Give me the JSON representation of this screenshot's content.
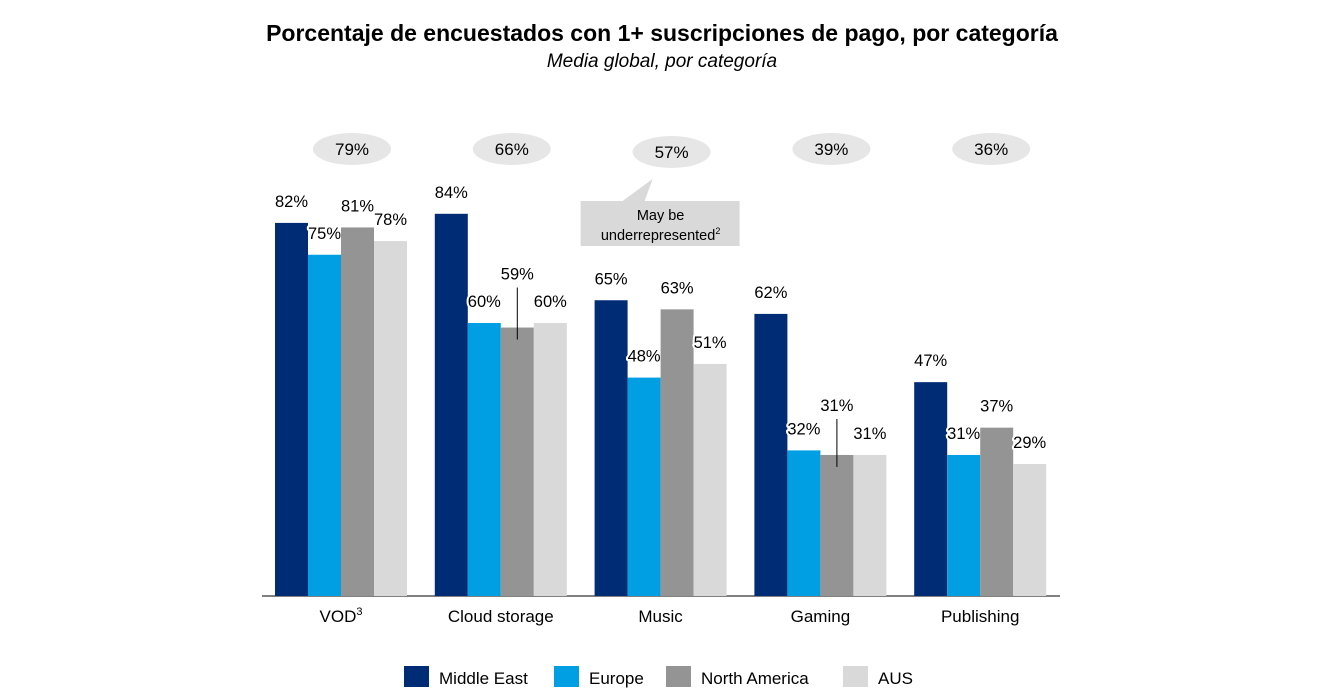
{
  "title": "Porcentaje de encuestados con 1+ suscripciones de pago, por categoría",
  "subtitle": "Media global, por categoría",
  "chart_data": {
    "type": "bar",
    "categories": [
      "VOD",
      "Cloud storage",
      "Music",
      "Gaming",
      "Publishing"
    ],
    "category_superscripts": [
      "3",
      "",
      "",
      "",
      ""
    ],
    "series": [
      {
        "name": "Middle East",
        "color": "#002B75",
        "values": [
          82,
          84,
          65,
          62,
          47
        ]
      },
      {
        "name": "Europe",
        "color": "#009FE3",
        "values": [
          75,
          60,
          48,
          32,
          31
        ]
      },
      {
        "name": "North America",
        "color": "#949494",
        "values": [
          81,
          59,
          63,
          31,
          37
        ]
      },
      {
        "name": "AUS",
        "color": "#D9D9D9",
        "values": [
          78,
          60,
          51,
          31,
          29
        ]
      }
    ],
    "global_averages": [
      79,
      66,
      57,
      39,
      36
    ],
    "value_suffix": "%",
    "ylim": [
      0,
      100
    ],
    "grid": false,
    "legend_position": "bottom",
    "annotation": {
      "text_line1": "May be",
      "text_line2": "underrepresented",
      "superscript": "2",
      "category": "Music"
    }
  }
}
